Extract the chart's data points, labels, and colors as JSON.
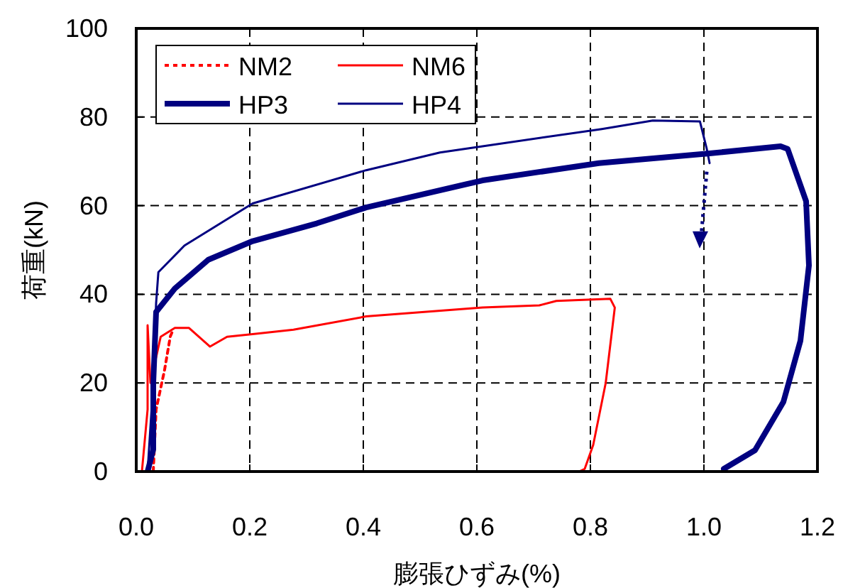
{
  "chart_data": {
    "type": "line",
    "xlabel": "膨張ひずみ(%)",
    "ylabel": "荷重(kN)",
    "xlim": [
      0,
      1.2
    ],
    "ylim": [
      0,
      100
    ],
    "xticks": [
      {
        "value": 0,
        "label": "0.0"
      },
      0.2,
      0.4,
      0.6,
      0.8,
      {
        "value": 1,
        "label": "1.0"
      },
      1.2
    ],
    "yticks": [
      0,
      20,
      40,
      60,
      80,
      100
    ],
    "grid": true,
    "legend": "top left",
    "marker": "none",
    "series": [
      {
        "name": "NM2",
        "color": "#ff0000",
        "line_style": "dotted",
        "x": [
          0.03,
          0.035,
          0.05,
          0.06,
          0.065
        ],
        "values": [
          0,
          14,
          23,
          30.5,
          32
        ]
      },
      {
        "name": "NM6",
        "color": "#ff0000",
        "line_style": "solid",
        "x": [
          0.01,
          0.02,
          0.02,
          0.025,
          0.043,
          0.068,
          0.093,
          0.13,
          0.16,
          0.205,
          0.277,
          0.405,
          0.61,
          0.71,
          0.74,
          0.835,
          0.843,
          0.827,
          0.805,
          0.79,
          0.78
        ],
        "values": [
          0,
          14,
          33,
          20,
          30.4,
          32.4,
          32.4,
          28.2,
          30.4,
          31,
          32,
          35,
          37,
          37.5,
          38.5,
          39,
          37,
          20,
          6,
          0.6,
          0
        ]
      },
      {
        "name": "HP3",
        "color": "#000080",
        "line_style": "solid",
        "x": [
          0.02,
          0.03,
          0.03,
          0.035,
          0.068,
          0.127,
          0.205,
          0.318,
          0.405,
          0.61,
          0.815,
          1.01,
          1.135,
          1.1475,
          1.18,
          1.185,
          1.17,
          1.14,
          1.09,
          1.035
        ],
        "values": [
          0,
          5,
          20,
          36,
          41.3,
          47.8,
          52,
          56,
          59.6,
          65.7,
          69.6,
          71.8,
          73.4,
          72.8,
          61,
          46.5,
          29.5,
          15.7,
          4.8,
          0.6
        ]
      },
      {
        "name": "HP4",
        "color": "#000080",
        "line_style": "solid",
        "x": [
          0.02,
          0.03,
          0.035,
          0.039,
          0.085,
          0.205,
          0.405,
          0.535,
          0.61,
          0.82,
          0.91,
          0.993,
          1.005,
          1.01
        ],
        "values": [
          0,
          20,
          38,
          45,
          51,
          60.5,
          68,
          72,
          73.4,
          77.3,
          79.2,
          79,
          72.8,
          69.6
        ]
      }
    ]
  }
}
